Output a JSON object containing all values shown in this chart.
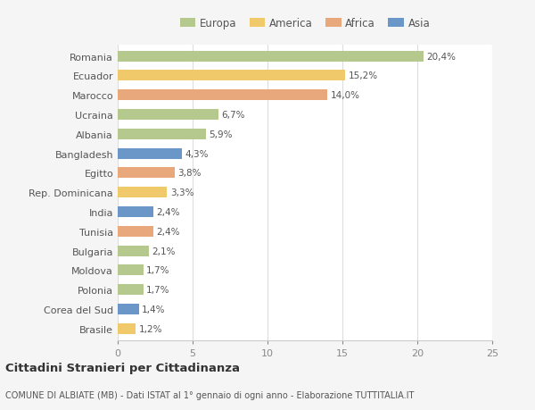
{
  "countries": [
    "Romania",
    "Ecuador",
    "Marocco",
    "Ucraina",
    "Albania",
    "Bangladesh",
    "Egitto",
    "Rep. Dominicana",
    "India",
    "Tunisia",
    "Bulgaria",
    "Moldova",
    "Polonia",
    "Corea del Sud",
    "Brasile"
  ],
  "values": [
    20.4,
    15.2,
    14.0,
    6.7,
    5.9,
    4.3,
    3.8,
    3.3,
    2.4,
    2.4,
    2.1,
    1.7,
    1.7,
    1.4,
    1.2
  ],
  "labels": [
    "20,4%",
    "15,2%",
    "14,0%",
    "6,7%",
    "5,9%",
    "4,3%",
    "3,8%",
    "3,3%",
    "2,4%",
    "2,4%",
    "2,1%",
    "1,7%",
    "1,7%",
    "1,4%",
    "1,2%"
  ],
  "continents": [
    "Europa",
    "America",
    "Africa",
    "Europa",
    "Europa",
    "Asia",
    "Africa",
    "America",
    "Asia",
    "Africa",
    "Europa",
    "Europa",
    "Europa",
    "Asia",
    "America"
  ],
  "continent_colors": {
    "Europa": "#b5c98e",
    "America": "#f0c96a",
    "Africa": "#e8a87c",
    "Asia": "#6b96c8"
  },
  "legend_order": [
    "Europa",
    "America",
    "Africa",
    "Asia"
  ],
  "title": "Cittadini Stranieri per Cittadinanza",
  "subtitle": "COMUNE DI ALBIATE (MB) - Dati ISTAT al 1° gennaio di ogni anno - Elaborazione TUTTITALIA.IT",
  "xlim": [
    0,
    25
  ],
  "xticks": [
    0,
    5,
    10,
    15,
    20,
    25
  ],
  "background_color": "#f5f5f5",
  "bar_background": "#ffffff"
}
